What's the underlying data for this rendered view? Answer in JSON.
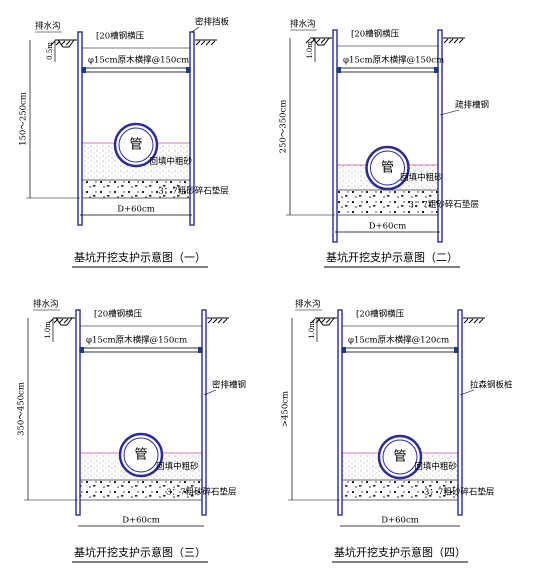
{
  "panels": [
    {
      "drain": "排水沟",
      "channel": "[20槽钢横压",
      "strut": "φ15cm原木横撑@150cm",
      "wall": "密排挡板",
      "pipe": "管",
      "backfill": "回填中粗砂",
      "cushion": "3：7粗砂碎石垫层",
      "width": "D+60cm",
      "depth": "150～250cm",
      "top_gap": "0.5m",
      "title": "基坑开挖支护示意图（一）"
    },
    {
      "drain": "排水沟",
      "channel": "[20槽钢横压",
      "strut": "φ15cm原木横撑@150cm",
      "wall": "疏排槽钢",
      "pipe": "管",
      "backfill": "回填中粗砂",
      "cushion": "3：7粗砂碎石垫层",
      "width": "D+60cm",
      "depth": "250～350cm",
      "top_gap": "1.0m",
      "title": "基坑开挖支护示意图（二）"
    },
    {
      "drain": "排水沟",
      "channel": "[20槽钢横压",
      "strut": "φ15cm原木横撑@150cm",
      "wall": "密排槽钢",
      "pipe": "管",
      "backfill": "回填中粗砂",
      "cushion": "3：7粗砂碎石垫层",
      "width": "D+60cm",
      "depth": "350～450cm",
      "top_gap": "1.0m",
      "title": "基坑开挖支护示意图（三）"
    },
    {
      "drain": "排水沟",
      "channel": "[20槽钢横压",
      "strut": "φ15cm原木横撑@120cm",
      "wall": "拉森钢板桩",
      "pipe": "管",
      "backfill": "回填中粗砂",
      "cushion": "3：7粗砂碎石垫层",
      "width": "D+60cm",
      "depth": ">450cm",
      "top_gap": "1.0m",
      "title": "基坑开挖支护示意图（四）"
    }
  ]
}
